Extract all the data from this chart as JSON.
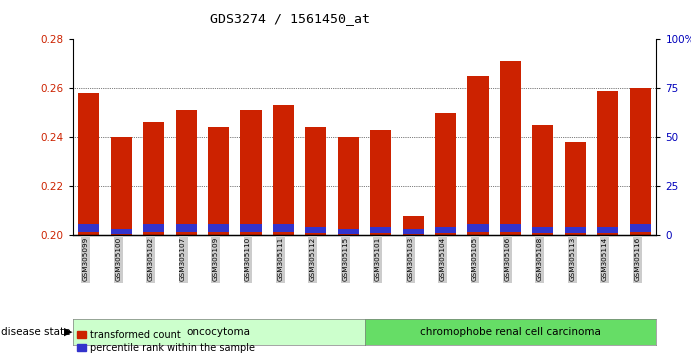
{
  "title": "GDS3274 / 1561450_at",
  "samples": [
    "GSM305099",
    "GSM305100",
    "GSM305102",
    "GSM305107",
    "GSM305109",
    "GSM305110",
    "GSM305111",
    "GSM305112",
    "GSM305115",
    "GSM305101",
    "GSM305103",
    "GSM305104",
    "GSM305105",
    "GSM305106",
    "GSM305108",
    "GSM305113",
    "GSM305114",
    "GSM305116"
  ],
  "transformed_count": [
    0.258,
    0.24,
    0.246,
    0.251,
    0.244,
    0.251,
    0.253,
    0.244,
    0.24,
    0.243,
    0.208,
    0.25,
    0.265,
    0.271,
    0.245,
    0.238,
    0.259,
    0.26
  ],
  "percentile_rank_bottom": [
    0.2015,
    0.2005,
    0.2015,
    0.2015,
    0.2015,
    0.2015,
    0.2015,
    0.201,
    0.2005,
    0.201,
    0.2005,
    0.201,
    0.2015,
    0.2015,
    0.201,
    0.201,
    0.201,
    0.2015
  ],
  "percentile_rank_height": [
    0.003,
    0.002,
    0.003,
    0.003,
    0.003,
    0.003,
    0.003,
    0.0025,
    0.002,
    0.0025,
    0.002,
    0.0025,
    0.003,
    0.003,
    0.0025,
    0.0025,
    0.0025,
    0.003
  ],
  "ymin": 0.2,
  "ymax": 0.28,
  "yticks_left": [
    0.2,
    0.22,
    0.24,
    0.26,
    0.28
  ],
  "yticks_right": [
    0,
    25,
    50,
    75,
    100
  ],
  "bar_color_red": "#cc2200",
  "bar_color_blue": "#3333cc",
  "oncocytoma_count": 9,
  "chromophobe_count": 9,
  "oncocytoma_label": "oncocytoma",
  "chromophobe_label": "chromophobe renal cell carcinoma",
  "disease_state_label": "disease state",
  "legend_red": "transformed count",
  "legend_blue": "percentile rank within the sample",
  "oncocytoma_color": "#ccffcc",
  "chromophobe_color": "#66dd66",
  "bg_color": "#ffffff",
  "tick_label_bg": "#cccccc"
}
